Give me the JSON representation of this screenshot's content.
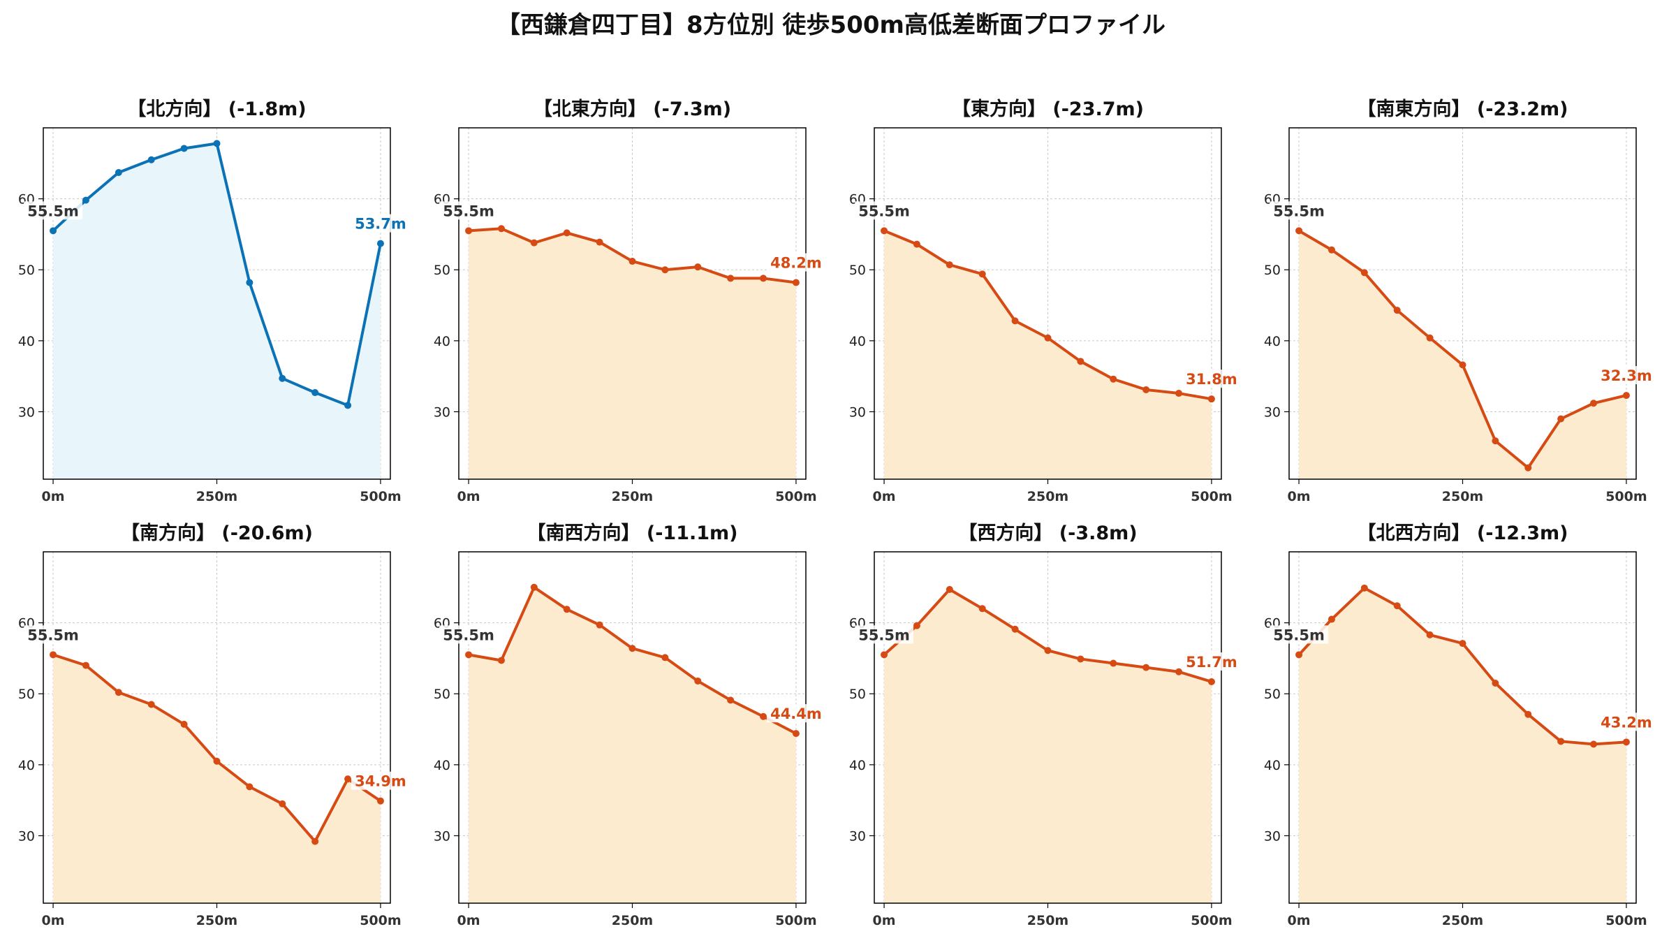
{
  "title": "【西鎌倉四丁目】8方位別 徒歩500m高低差断面プロファイル",
  "colors": {
    "uphill_line": "#0a72b5",
    "uphill_fill": "#e8f5fb",
    "downhill_line": "#d64a14",
    "downhill_fill": "#fdebd0",
    "start_label": "#333333"
  },
  "chart_data": [
    {
      "type": "area",
      "title": "【北方向】 (-1.8m)",
      "x": [
        0,
        50,
        100,
        150,
        200,
        250,
        300,
        350,
        400,
        450,
        500
      ],
      "y": [
        55.5,
        59.8,
        63.7,
        65.5,
        67.1,
        67.8,
        48.2,
        34.7,
        32.7,
        30.9,
        53.7
      ],
      "start_label": "55.5m",
      "end_label": "53.7m",
      "scheme": "uphill",
      "xticks": [
        "0m",
        "250m",
        "500m"
      ],
      "yticks": [
        30,
        40,
        50,
        60
      ],
      "xlim": [
        -15,
        515
      ],
      "ylim": [
        20.5,
        70
      ],
      "grid": true
    },
    {
      "type": "area",
      "title": "【北東方向】 (-7.3m)",
      "x": [
        0,
        50,
        100,
        150,
        200,
        250,
        300,
        350,
        400,
        450,
        500
      ],
      "y": [
        55.5,
        55.8,
        53.8,
        55.2,
        53.9,
        51.2,
        50.0,
        50.4,
        48.8,
        48.8,
        48.2
      ],
      "start_label": "55.5m",
      "end_label": "48.2m",
      "scheme": "downhill",
      "xticks": [
        "0m",
        "250m",
        "500m"
      ],
      "yticks": [
        30,
        40,
        50,
        60
      ],
      "xlim": [
        -15,
        515
      ],
      "ylim": [
        20.5,
        70
      ],
      "grid": true
    },
    {
      "type": "area",
      "title": "【東方向】 (-23.7m)",
      "x": [
        0,
        50,
        100,
        150,
        200,
        250,
        300,
        350,
        400,
        450,
        500
      ],
      "y": [
        55.5,
        53.6,
        50.7,
        49.4,
        42.8,
        40.4,
        37.1,
        34.6,
        33.1,
        32.6,
        31.8
      ],
      "start_label": "55.5m",
      "end_label": "31.8m",
      "scheme": "downhill",
      "xticks": [
        "0m",
        "250m",
        "500m"
      ],
      "yticks": [
        30,
        40,
        50,
        60
      ],
      "xlim": [
        -15,
        515
      ],
      "ylim": [
        20.5,
        70
      ],
      "grid": true
    },
    {
      "type": "area",
      "title": "【南東方向】 (-23.2m)",
      "x": [
        0,
        50,
        100,
        150,
        200,
        250,
        300,
        350,
        400,
        450,
        500
      ],
      "y": [
        55.5,
        52.8,
        49.6,
        44.3,
        40.4,
        36.6,
        25.9,
        22.1,
        29.0,
        31.2,
        32.3
      ],
      "start_label": "55.5m",
      "end_label": "32.3m",
      "scheme": "downhill",
      "xticks": [
        "0m",
        "250m",
        "500m"
      ],
      "yticks": [
        30,
        40,
        50,
        60
      ],
      "xlim": [
        -15,
        515
      ],
      "ylim": [
        20.5,
        70
      ],
      "grid": true
    },
    {
      "type": "area",
      "title": "【南方向】 (-20.6m)",
      "x": [
        0,
        50,
        100,
        150,
        200,
        250,
        300,
        350,
        400,
        450,
        500
      ],
      "y": [
        55.5,
        54.0,
        50.2,
        48.5,
        45.7,
        40.5,
        36.9,
        34.5,
        29.2,
        38.0,
        34.9
      ],
      "start_label": "55.5m",
      "end_label": "34.9m",
      "scheme": "downhill",
      "xticks": [
        "0m",
        "250m",
        "500m"
      ],
      "yticks": [
        30,
        40,
        50,
        60
      ],
      "xlim": [
        -15,
        515
      ],
      "ylim": [
        20.5,
        70
      ],
      "grid": true
    },
    {
      "type": "area",
      "title": "【南西方向】 (-11.1m)",
      "x": [
        0,
        50,
        100,
        150,
        200,
        250,
        300,
        350,
        400,
        450,
        500
      ],
      "y": [
        55.5,
        54.7,
        65.0,
        61.9,
        59.7,
        56.4,
        55.1,
        51.8,
        49.1,
        46.8,
        44.4
      ],
      "start_label": "55.5m",
      "end_label": "44.4m",
      "scheme": "downhill",
      "xticks": [
        "0m",
        "250m",
        "500m"
      ],
      "yticks": [
        30,
        40,
        50,
        60
      ],
      "xlim": [
        -15,
        515
      ],
      "ylim": [
        20.5,
        70
      ],
      "grid": true
    },
    {
      "type": "area",
      "title": "【西方向】 (-3.8m)",
      "x": [
        0,
        50,
        100,
        150,
        200,
        250,
        300,
        350,
        400,
        450,
        500
      ],
      "y": [
        55.5,
        59.6,
        64.7,
        62.0,
        59.1,
        56.1,
        54.9,
        54.3,
        53.7,
        53.1,
        51.7
      ],
      "start_label": "55.5m",
      "end_label": "51.7m",
      "scheme": "downhill",
      "xticks": [
        "0m",
        "250m",
        "500m"
      ],
      "yticks": [
        30,
        40,
        50,
        60
      ],
      "xlim": [
        -15,
        515
      ],
      "ylim": [
        20.5,
        70
      ],
      "grid": true
    },
    {
      "type": "area",
      "title": "【北西方向】 (-12.3m)",
      "x": [
        0,
        50,
        100,
        150,
        200,
        250,
        300,
        350,
        400,
        450,
        500
      ],
      "y": [
        55.5,
        60.5,
        64.9,
        62.4,
        58.3,
        57.1,
        51.5,
        47.1,
        43.3,
        42.9,
        43.2
      ],
      "start_label": "55.5m",
      "end_label": "43.2m",
      "scheme": "downhill",
      "xticks": [
        "0m",
        "250m",
        "500m"
      ],
      "yticks": [
        30,
        40,
        50,
        60
      ],
      "xlim": [
        -15,
        515
      ],
      "ylim": [
        20.5,
        70
      ],
      "grid": true
    }
  ]
}
